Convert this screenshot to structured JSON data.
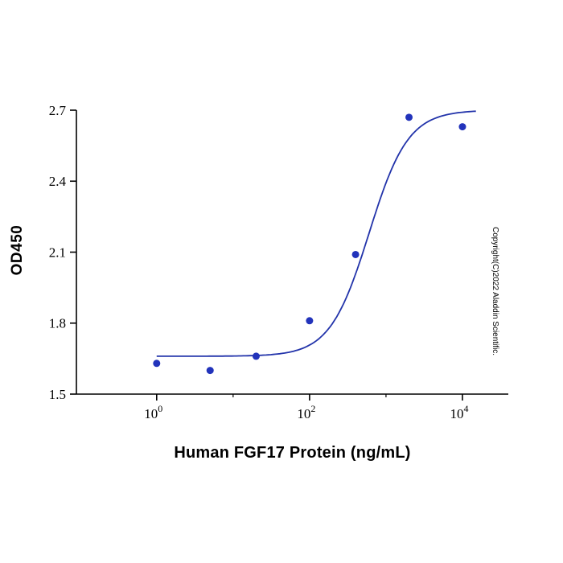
{
  "watermark": {
    "text": "Copyright(C)2022 Aladdin Scientific."
  },
  "chart_data": {
    "type": "scatter",
    "title": "",
    "xlabel": "Human FGF17 Protein (ng/mL)",
    "ylabel": "OD450",
    "x_scale": "log10",
    "x": [
      1,
      5,
      20,
      100,
      400,
      2000,
      10000
    ],
    "y": [
      1.63,
      1.6,
      1.66,
      1.81,
      2.09,
      2.67,
      2.63
    ],
    "x_tick_exponents": [
      0,
      2,
      4
    ],
    "x_minor_tick_exponents": [
      1,
      3
    ],
    "y_ticks": [
      1.5,
      1.8,
      2.1,
      2.4,
      2.7
    ],
    "ylim": [
      1.5,
      2.7
    ],
    "xlim_exponents": [
      -1.05,
      4.6
    ],
    "grid": false,
    "legend": "none",
    "point_color": "#2233bb",
    "curve_color": "#2233aa",
    "axis_color": "#000000",
    "fit_curve": {
      "model": "4PL",
      "bottom": 1.66,
      "top": 2.7,
      "ec50": 600,
      "hill": 1.7,
      "x_start": 1,
      "x_end": 15000
    }
  }
}
